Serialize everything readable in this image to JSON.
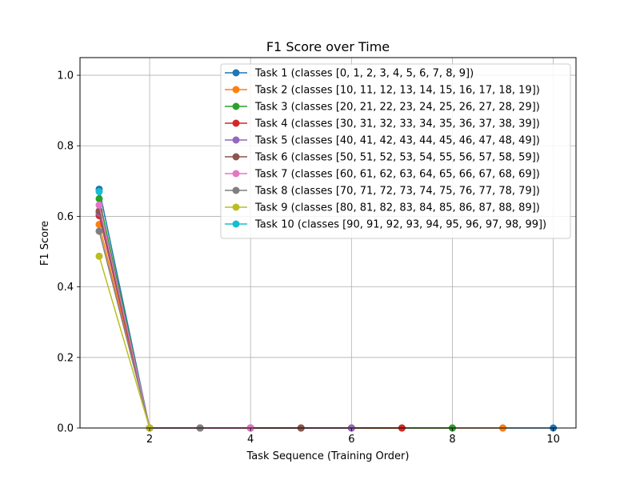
{
  "chart_data": {
    "type": "line",
    "title": "F1 Score over Time",
    "xlabel": "Task Sequence (Training Order)",
    "ylabel": "F1 Score",
    "xlim": [
      0.62,
      10.45
    ],
    "ylim": [
      0,
      1.05
    ],
    "xticks": [
      2,
      4,
      6,
      8,
      10
    ],
    "yticks": [
      0.0,
      0.2,
      0.4,
      0.6,
      0.8,
      1.0
    ],
    "ytick_labels": [
      "0.0",
      "0.2",
      "0.4",
      "0.6",
      "0.8",
      "1.0"
    ],
    "grid": true,
    "legend_position": "upper-right",
    "series": [
      {
        "name": "Task 1 (classes [0, 1, 2, 3, 4, 5, 6, 7, 8, 9])",
        "color": "#1f77b4",
        "x": [
          1,
          2,
          3,
          4,
          5,
          6,
          7,
          8,
          9,
          10
        ],
        "y": [
          0.677,
          0,
          0,
          0,
          0,
          0,
          0,
          0,
          0,
          0
        ]
      },
      {
        "name": "Task 2 (classes [10, 11, 12, 13, 14, 15, 16, 17, 18, 19])",
        "color": "#ff7f0e",
        "x": [
          1,
          2,
          3,
          4,
          5,
          6,
          7,
          8,
          9
        ],
        "y": [
          0.577,
          0,
          0,
          0,
          0,
          0,
          0,
          0,
          0
        ]
      },
      {
        "name": "Task 3 (classes [20, 21, 22, 23, 24, 25, 26, 27, 28, 29])",
        "color": "#2ca02c",
        "x": [
          1,
          2,
          3,
          4,
          5,
          6,
          7,
          8
        ],
        "y": [
          0.65,
          0,
          0,
          0,
          0,
          0,
          0,
          0
        ]
      },
      {
        "name": "Task 4 (classes [30, 31, 32, 33, 34, 35, 36, 37, 38, 39])",
        "color": "#d62728",
        "x": [
          1,
          2,
          3,
          4,
          5,
          6,
          7
        ],
        "y": [
          0.602,
          0,
          0,
          0,
          0,
          0,
          0
        ]
      },
      {
        "name": "Task 5 (classes [40, 41, 42, 43, 44, 45, 46, 47, 48, 49])",
        "color": "#9467bd",
        "x": [
          1,
          2,
          3,
          4,
          5,
          6
        ],
        "y": [
          0.61,
          0,
          0,
          0,
          0,
          0
        ]
      },
      {
        "name": "Task 6 (classes [50, 51, 52, 53, 54, 55, 56, 57, 58, 59])",
        "color": "#8c564b",
        "x": [
          1,
          2,
          3,
          4,
          5
        ],
        "y": [
          0.615,
          0,
          0,
          0,
          0
        ]
      },
      {
        "name": "Task 7 (classes [60, 61, 62, 63, 64, 65, 66, 67, 68, 69])",
        "color": "#e377c2",
        "x": [
          1,
          2,
          3,
          4
        ],
        "y": [
          0.632,
          0,
          0,
          0
        ]
      },
      {
        "name": "Task 8 (classes [70, 71, 72, 73, 74, 75, 76, 77, 78, 79])",
        "color": "#7f7f7f",
        "x": [
          1,
          2,
          3
        ],
        "y": [
          0.558,
          0,
          0
        ]
      },
      {
        "name": "Task 9 (classes [80, 81, 82, 83, 84, 85, 86, 87, 88, 89])",
        "color": "#bcbd22",
        "x": [
          1,
          2
        ],
        "y": [
          0.487,
          0
        ]
      },
      {
        "name": "Task 10 (classes [90, 91, 92, 93, 94, 95, 96, 97, 98, 99])",
        "color": "#17becf",
        "x": [
          1
        ],
        "y": [
          0.67
        ]
      }
    ]
  }
}
